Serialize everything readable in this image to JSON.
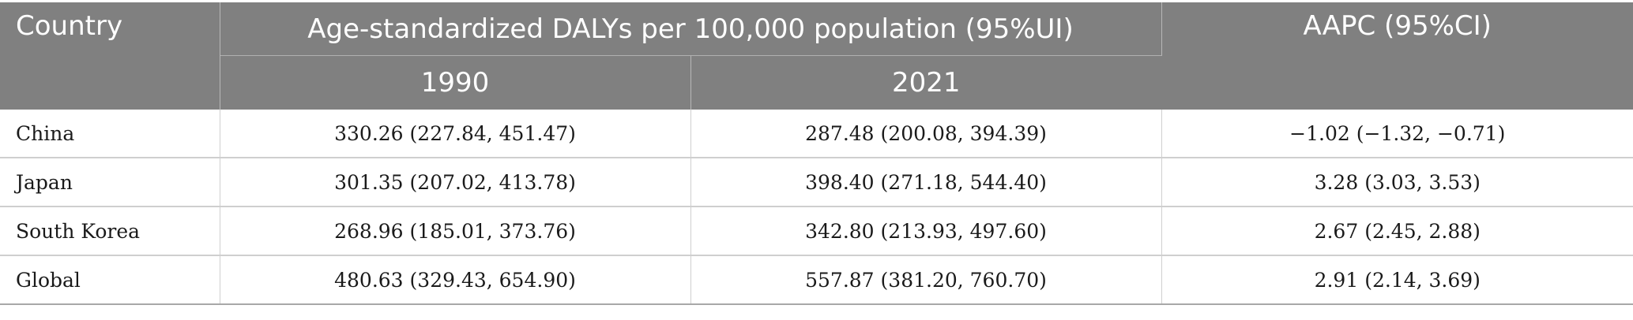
{
  "table": {
    "headers": {
      "country": "Country",
      "group": "Age-standardized DALYs per 100,000 population (95%UI)",
      "year_1990": "1990",
      "year_2021": "2021",
      "aapc": "AAPC (95%CI)"
    },
    "rows": [
      {
        "country": "China",
        "v1990": "330.26 (227.84, 451.47)",
        "v2021": "287.48 (200.08, 394.39)",
        "aapc": "−1.02 (−1.32, −0.71)"
      },
      {
        "country": "Japan",
        "v1990": "301.35 (207.02, 413.78)",
        "v2021": "398.40 (271.18, 544.40)",
        "aapc": "3.28 (3.03, 3.53)"
      },
      {
        "country": "South Korea",
        "v1990": "268.96 (185.01, 373.76)",
        "v2021": "342.80 (213.93, 497.60)",
        "aapc": "2.67 (2.45, 2.88)"
      },
      {
        "country": "Global",
        "v1990": "480.63 (329.43, 654.90)",
        "v2021": "557.87 (381.20, 760.70)",
        "aapc": "2.91 (2.14, 3.69)"
      }
    ],
    "colors": {
      "header_bg": "#808080",
      "header_text": "#ffffff",
      "row_border": "#cfcfcf"
    }
  }
}
